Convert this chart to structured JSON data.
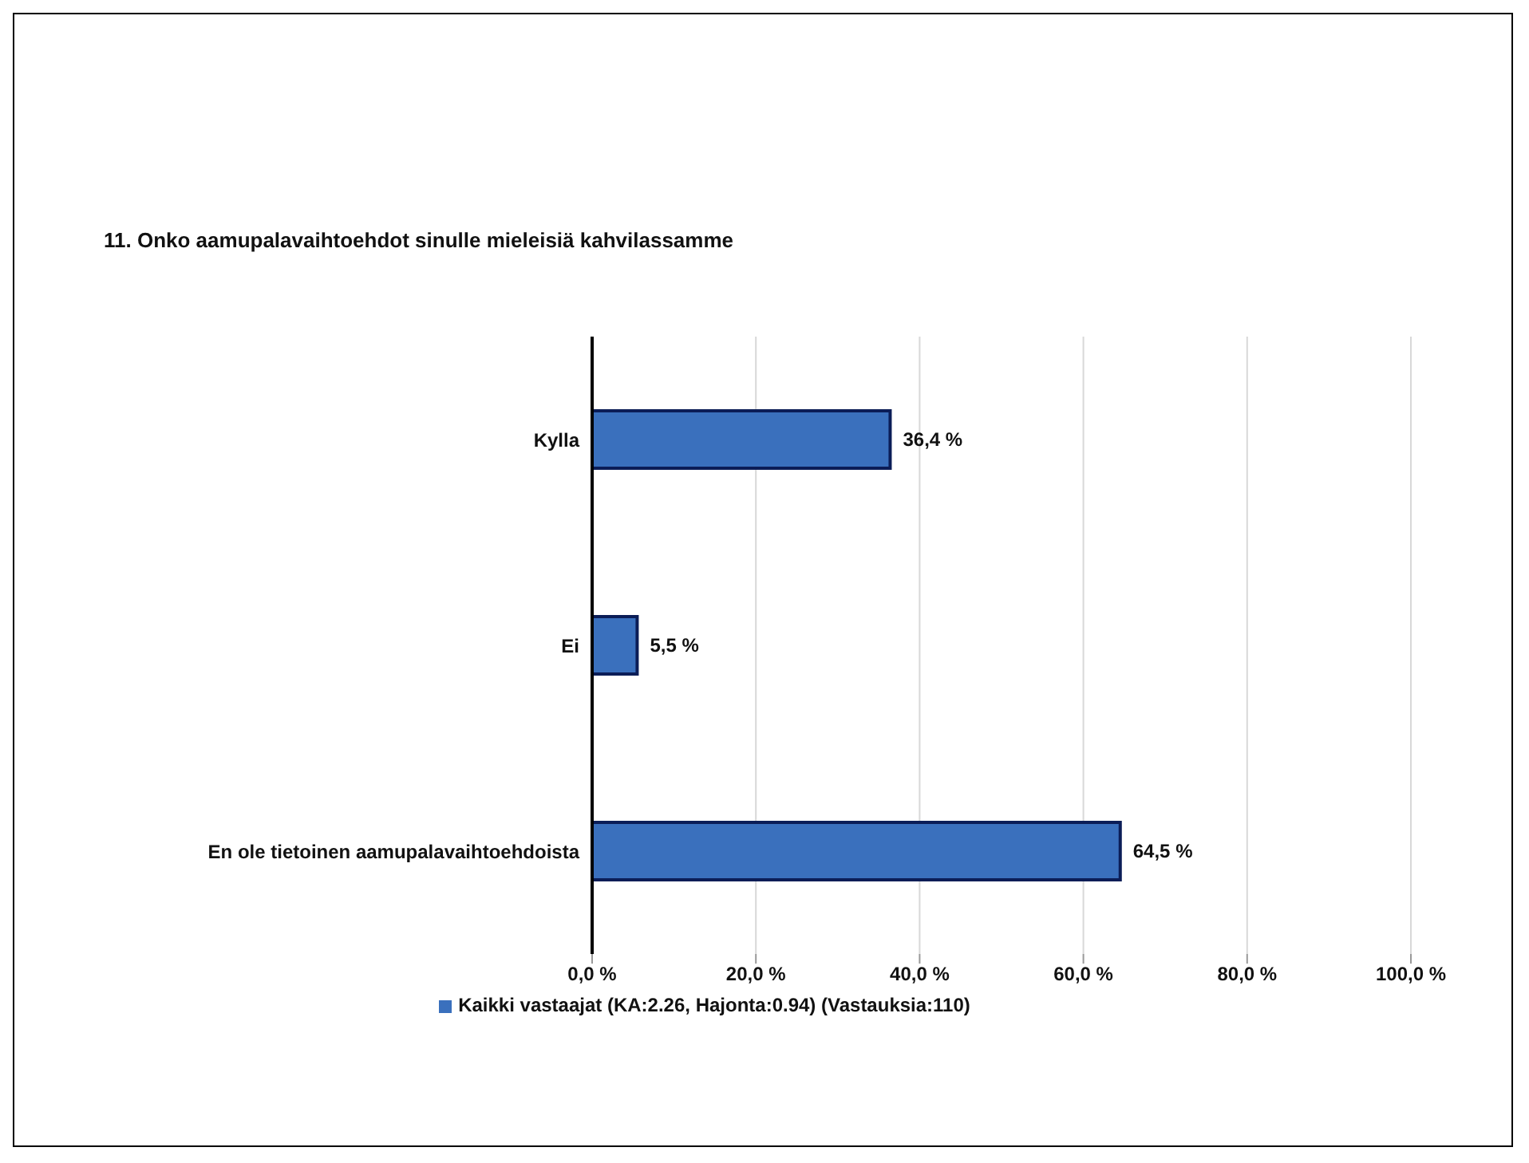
{
  "chart_data": {
    "type": "bar",
    "orientation": "horizontal",
    "title": "11. Onko aamupalavaihtoehdot sinulle mieleisiä kahvilassamme",
    "categories": [
      "Kylla",
      "Ei",
      "En ole tietoinen aamupalavaihtoehdoista"
    ],
    "series": [
      {
        "name": "Kaikki vastaajat (KA:2.26, Hajonta:0.94) (Vastauksia:110)",
        "color": "#3a70bd",
        "values": [
          36.4,
          5.5,
          64.5
        ],
        "value_labels": [
          "36,4 %",
          "5,5 %",
          "64,5 %"
        ]
      }
    ],
    "xlim": [
      0,
      100
    ],
    "xticks": [
      {
        "value": 0,
        "label": "0,0 %"
      },
      {
        "value": 20,
        "label": "20,0 %"
      },
      {
        "value": 40,
        "label": "40,0 %"
      },
      {
        "value": 60,
        "label": "60,0 %"
      },
      {
        "value": 80,
        "label": "80,0 %"
      },
      {
        "value": 100,
        "label": "100,0 %"
      }
    ],
    "grid": "x",
    "legend": "bottom"
  }
}
